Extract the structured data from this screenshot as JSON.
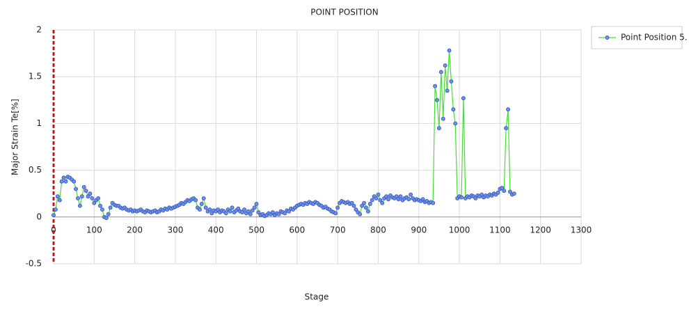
{
  "chart_data": {
    "type": "line",
    "title": "POINT POSITION",
    "x_label": "Stage",
    "y_label": "Major Strain Te[%]",
    "xlim": [
      0,
      1300
    ],
    "xticks": [
      0,
      100,
      200,
      300,
      400,
      500,
      600,
      700,
      800,
      900,
      1000,
      1100,
      1200,
      1300
    ],
    "ylim": [
      -0.5,
      2
    ],
    "yticks": [
      -0.5,
      0,
      0.5,
      1,
      1.5,
      2
    ],
    "grid": true,
    "legend": "outside-right",
    "x": [
      0,
      5,
      10,
      15,
      20,
      25,
      30,
      35,
      40,
      45,
      50,
      55,
      60,
      65,
      70,
      75,
      80,
      85,
      90,
      95,
      100,
      105,
      110,
      115,
      120,
      125,
      130,
      135,
      140,
      145,
      150,
      155,
      160,
      165,
      170,
      175,
      180,
      185,
      190,
      195,
      200,
      205,
      210,
      215,
      220,
      225,
      230,
      235,
      240,
      245,
      250,
      255,
      260,
      265,
      270,
      275,
      280,
      285,
      290,
      295,
      300,
      305,
      310,
      315,
      320,
      325,
      330,
      335,
      340,
      345,
      350,
      355,
      360,
      365,
      370,
      375,
      380,
      385,
      390,
      395,
      400,
      405,
      410,
      415,
      420,
      425,
      430,
      435,
      440,
      445,
      450,
      455,
      460,
      465,
      470,
      475,
      480,
      485,
      490,
      495,
      500,
      505,
      510,
      515,
      520,
      525,
      530,
      535,
      540,
      545,
      550,
      555,
      560,
      565,
      570,
      575,
      580,
      585,
      590,
      595,
      600,
      605,
      610,
      615,
      620,
      625,
      630,
      635,
      640,
      645,
      650,
      655,
      660,
      665,
      670,
      675,
      680,
      685,
      690,
      695,
      700,
      705,
      710,
      715,
      720,
      725,
      730,
      735,
      740,
      745,
      750,
      755,
      760,
      765,
      770,
      775,
      780,
      785,
      790,
      795,
      800,
      805,
      810,
      815,
      820,
      825,
      830,
      835,
      840,
      845,
      850,
      855,
      860,
      865,
      870,
      875,
      880,
      885,
      890,
      895,
      900,
      905,
      910,
      915,
      920,
      925,
      930,
      935,
      940,
      945,
      950,
      955,
      960,
      965,
      970,
      975,
      980,
      985,
      990,
      995,
      1000,
      1005,
      1010,
      1015,
      1020,
      1025,
      1030,
      1035,
      1040,
      1045,
      1050,
      1055,
      1060,
      1065,
      1070,
      1075,
      1080,
      1085,
      1090,
      1095,
      1100,
      1105,
      1110,
      1115,
      1120,
      1125,
      1130,
      1135
    ],
    "series": [
      {
        "name": "Point Position 5.",
        "color": "#44dd33",
        "marker_color": "#6b8de6",
        "values": [
          0.02,
          0.08,
          0.22,
          0.18,
          0.38,
          0.42,
          0.38,
          0.43,
          0.42,
          0.4,
          0.38,
          0.3,
          0.2,
          0.12,
          0.22,
          0.32,
          0.28,
          0.22,
          0.25,
          0.2,
          0.15,
          0.18,
          0.2,
          0.12,
          0.08,
          0.0,
          -0.01,
          0.03,
          0.1,
          0.15,
          0.13,
          0.12,
          0.12,
          0.1,
          0.09,
          0.1,
          0.08,
          0.07,
          0.08,
          0.06,
          0.07,
          0.06,
          0.07,
          0.08,
          0.06,
          0.05,
          0.07,
          0.06,
          0.05,
          0.06,
          0.07,
          0.05,
          0.06,
          0.08,
          0.07,
          0.09,
          0.08,
          0.1,
          0.09,
          0.1,
          0.11,
          0.12,
          0.13,
          0.15,
          0.14,
          0.16,
          0.18,
          0.17,
          0.19,
          0.2,
          0.18,
          0.1,
          0.08,
          0.14,
          0.2,
          0.1,
          0.06,
          0.08,
          0.04,
          0.07,
          0.06,
          0.08,
          0.05,
          0.07,
          0.06,
          0.04,
          0.08,
          0.06,
          0.1,
          0.05,
          0.07,
          0.09,
          0.06,
          0.05,
          0.08,
          0.04,
          0.06,
          0.03,
          0.07,
          0.1,
          0.14,
          0.05,
          0.02,
          0.03,
          0.01,
          0.02,
          0.04,
          0.03,
          0.05,
          0.02,
          0.04,
          0.03,
          0.06,
          0.05,
          0.04,
          0.07,
          0.06,
          0.09,
          0.08,
          0.1,
          0.12,
          0.13,
          0.14,
          0.13,
          0.15,
          0.14,
          0.16,
          0.15,
          0.14,
          0.16,
          0.15,
          0.13,
          0.12,
          0.1,
          0.11,
          0.09,
          0.08,
          0.06,
          0.05,
          0.04,
          0.1,
          0.15,
          0.17,
          0.16,
          0.15,
          0.16,
          0.14,
          0.15,
          0.12,
          0.08,
          0.05,
          0.03,
          0.12,
          0.15,
          0.1,
          0.06,
          0.14,
          0.18,
          0.22,
          0.2,
          0.24,
          0.18,
          0.15,
          0.2,
          0.22,
          0.19,
          0.23,
          0.21,
          0.2,
          0.22,
          0.19,
          0.22,
          0.18,
          0.2,
          0.21,
          0.19,
          0.24,
          0.2,
          0.18,
          0.19,
          0.18,
          0.17,
          0.19,
          0.16,
          0.17,
          0.15,
          0.16,
          0.15,
          1.4,
          1.25,
          0.95,
          1.55,
          1.05,
          1.62,
          1.35,
          1.78,
          1.45,
          1.15,
          1.0,
          0.2,
          0.22,
          0.21,
          1.27,
          0.2,
          0.22,
          0.21,
          0.23,
          0.22,
          0.2,
          0.23,
          0.22,
          0.24,
          0.21,
          0.23,
          0.22,
          0.24,
          0.23,
          0.25,
          0.24,
          0.26,
          0.3,
          0.31,
          0.28,
          0.95,
          1.15,
          0.27,
          0.24,
          0.25
        ]
      }
    ]
  }
}
